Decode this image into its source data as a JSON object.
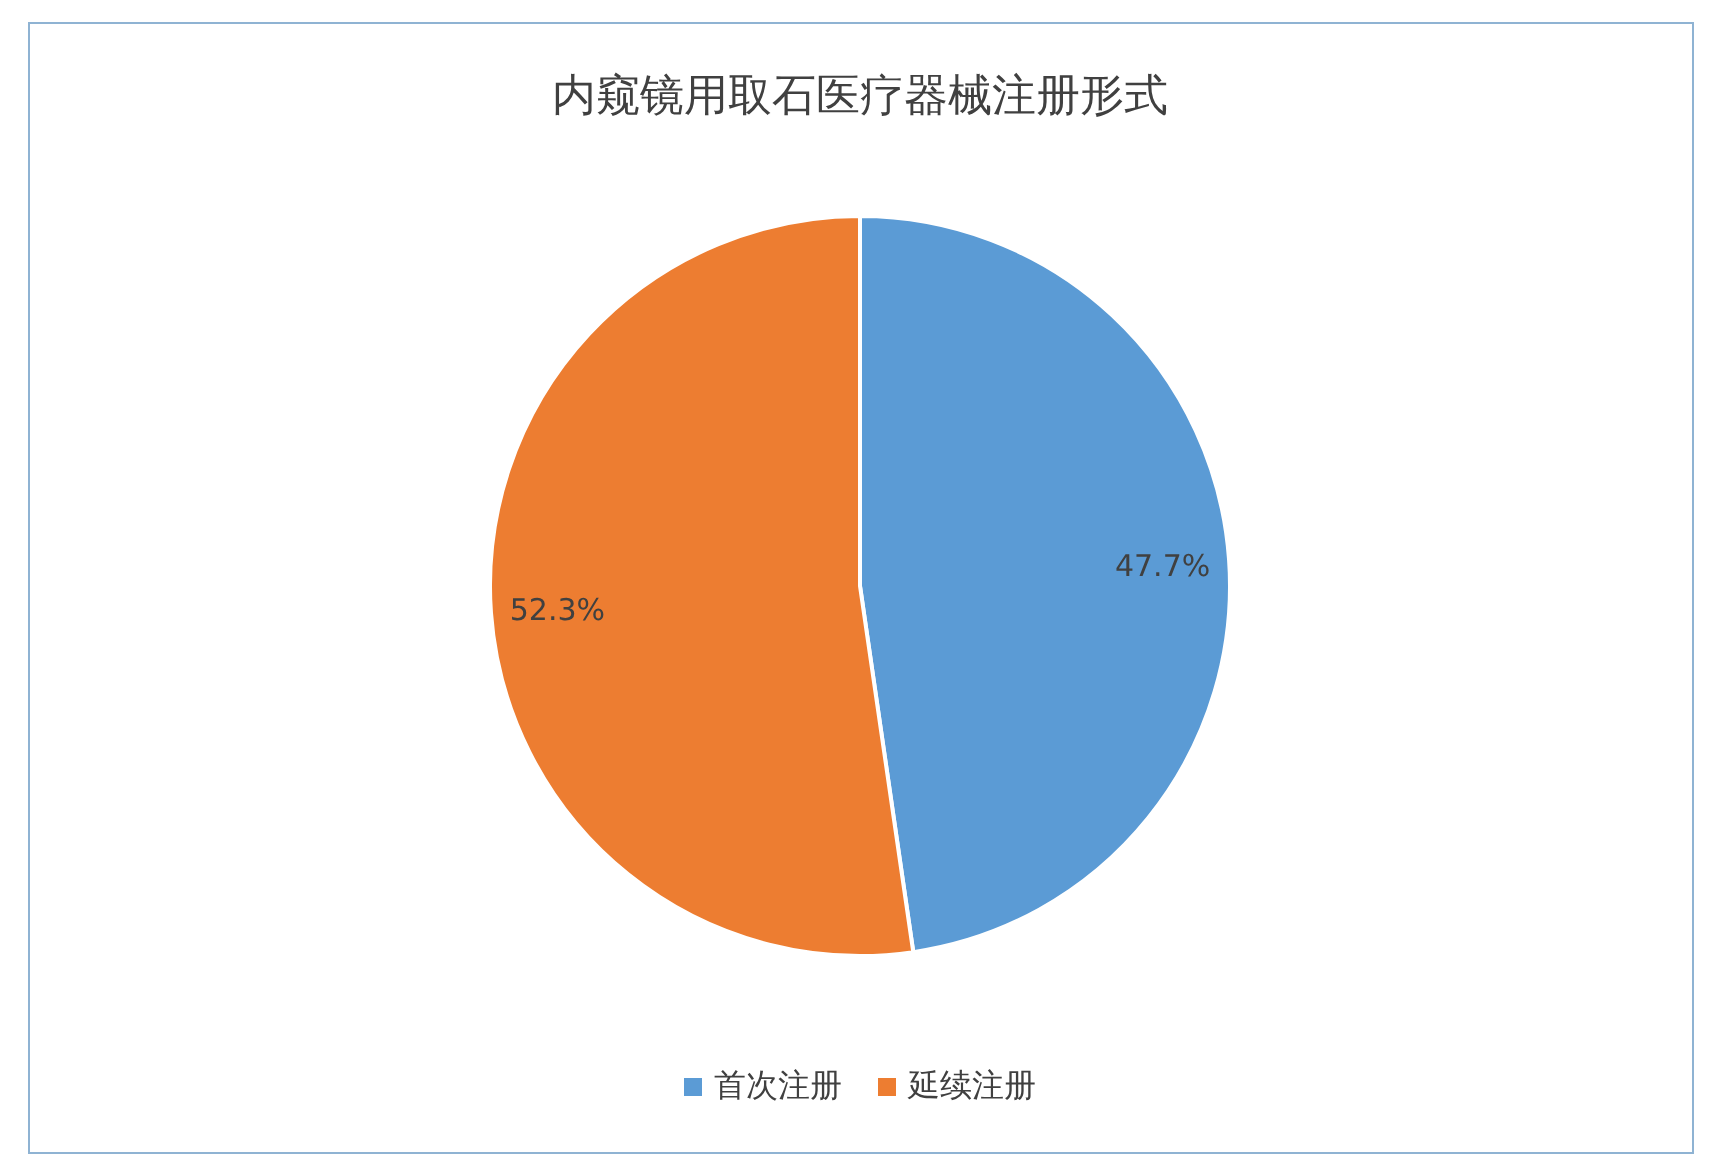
{
  "chart_data": {
    "type": "pie",
    "title": "内窥镜用取石医疗器械注册形式",
    "categories": [
      "首次注册",
      "延续注册"
    ],
    "values": [
      47.7,
      52.3
    ],
    "colors": [
      "#5b9bd5",
      "#ed7d31"
    ],
    "value_labels": [
      "47.7%",
      "52.3%"
    ],
    "legend": "bottom"
  }
}
